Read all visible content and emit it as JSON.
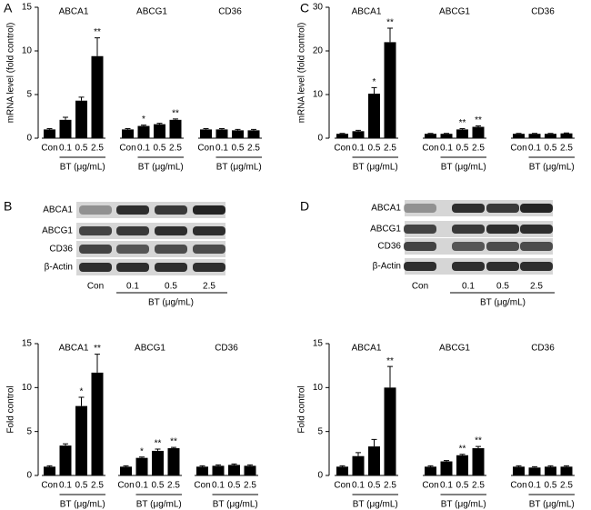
{
  "chart_data": [
    {
      "type": "bar",
      "panel": "A",
      "ylabel": "mRNA level (fold control)",
      "xlabel": "BT (μg/mL)",
      "color": "#000000",
      "groups": [
        "ABCA1",
        "ABCG1",
        "CD36"
      ],
      "categories": [
        "Con",
        "0.1",
        "0.5",
        "2.5"
      ],
      "values": [
        [
          1.0,
          2.1,
          4.3,
          9.4
        ],
        [
          1.0,
          1.4,
          1.6,
          2.1
        ],
        [
          1.0,
          1.0,
          0.9,
          0.9
        ]
      ],
      "errors": [
        [
          0.1,
          0.3,
          0.4,
          2.1
        ],
        [
          0.1,
          0.1,
          0.1,
          0.1
        ],
        [
          0.1,
          0.1,
          0.1,
          0.1
        ]
      ],
      "annotations": [
        [
          null,
          null,
          null,
          "**"
        ],
        [
          null,
          "*",
          null,
          "**"
        ],
        [
          null,
          null,
          null,
          null
        ]
      ],
      "ylim": [
        0,
        15
      ],
      "yticks": [
        0,
        5,
        10,
        15
      ]
    },
    {
      "type": "bar",
      "panel": "C",
      "ylabel": "mRNA level (fold control)",
      "xlabel": "BT (μg/mL)",
      "color": "#000000",
      "groups": [
        "ABCA1",
        "ABCG1",
        "CD36"
      ],
      "categories": [
        "Con",
        "0.1",
        "0.5",
        "2.5"
      ],
      "values": [
        [
          1.0,
          1.6,
          10.2,
          22.0
        ],
        [
          1.0,
          1.0,
          2.0,
          2.6
        ],
        [
          1.0,
          1.0,
          1.0,
          1.1
        ]
      ],
      "errors": [
        [
          0.1,
          0.2,
          1.4,
          3.2
        ],
        [
          0.1,
          0.1,
          0.2,
          0.2
        ],
        [
          0.1,
          0.1,
          0.1,
          0.1
        ]
      ],
      "annotations": [
        [
          null,
          null,
          "*",
          "**"
        ],
        [
          null,
          null,
          "**",
          "**"
        ],
        [
          null,
          null,
          null,
          null
        ]
      ],
      "ylim": [
        0,
        30
      ],
      "yticks": [
        0,
        10,
        20,
        30
      ]
    },
    {
      "type": "bar",
      "ylabel": "Fold control",
      "xlabel": "BT (μg/mL)",
      "color": "#000000",
      "groups": [
        "ABCA1",
        "ABCG1",
        "CD36"
      ],
      "categories": [
        "Con",
        "0.1",
        "0.5",
        "2.5"
      ],
      "values": [
        [
          1.0,
          3.4,
          7.9,
          11.7
        ],
        [
          1.0,
          2.0,
          2.8,
          3.1
        ],
        [
          1.0,
          1.1,
          1.2,
          1.1
        ]
      ],
      "errors": [
        [
          0.1,
          0.2,
          1.0,
          2.1
        ],
        [
          0.1,
          0.1,
          0.2,
          0.1
        ],
        [
          0.1,
          0.1,
          0.1,
          0.1
        ]
      ],
      "annotations": [
        [
          null,
          null,
          "*",
          "**"
        ],
        [
          null,
          "*",
          "**",
          "**"
        ],
        [
          null,
          null,
          null,
          null
        ]
      ],
      "ylim": [
        0,
        15
      ],
      "yticks": [
        0,
        5,
        10,
        15
      ]
    },
    {
      "type": "bar",
      "ylabel": "Fold control",
      "xlabel": "BT (μg/mL)",
      "color": "#000000",
      "groups": [
        "ABCA1",
        "ABCG1",
        "CD36"
      ],
      "categories": [
        "Con",
        "0.1",
        "0.5",
        "2.5"
      ],
      "values": [
        [
          1.0,
          2.2,
          3.3,
          10.0
        ],
        [
          1.0,
          1.6,
          2.3,
          3.1
        ],
        [
          1.0,
          0.9,
          1.0,
          1.0
        ]
      ],
      "errors": [
        [
          0.1,
          0.4,
          0.8,
          2.4
        ],
        [
          0.1,
          0.1,
          0.1,
          0.2
        ],
        [
          0.1,
          0.1,
          0.1,
          0.1
        ]
      ],
      "annotations": [
        [
          null,
          null,
          null,
          "**"
        ],
        [
          null,
          null,
          "**",
          "**"
        ],
        [
          null,
          null,
          null,
          null
        ]
      ],
      "ylim": [
        0,
        15
      ],
      "yticks": [
        0,
        5,
        10,
        15
      ]
    }
  ],
  "blots": [
    {
      "panel": "B",
      "rows": [
        "ABCA1",
        "ABCG1",
        "CD36",
        "β-Actin"
      ],
      "lanes": [
        "Con",
        "0.1",
        "0.5",
        "2.5"
      ],
      "xlabel": "BT (μg/mL)"
    },
    {
      "panel": "D",
      "rows": [
        "ABCA1",
        "ABCG1",
        "CD36",
        "β-Actin"
      ],
      "lanes": [
        "Con",
        "0.1",
        "0.5",
        "2.5"
      ],
      "xlabel": "BT (μg/mL)"
    }
  ]
}
